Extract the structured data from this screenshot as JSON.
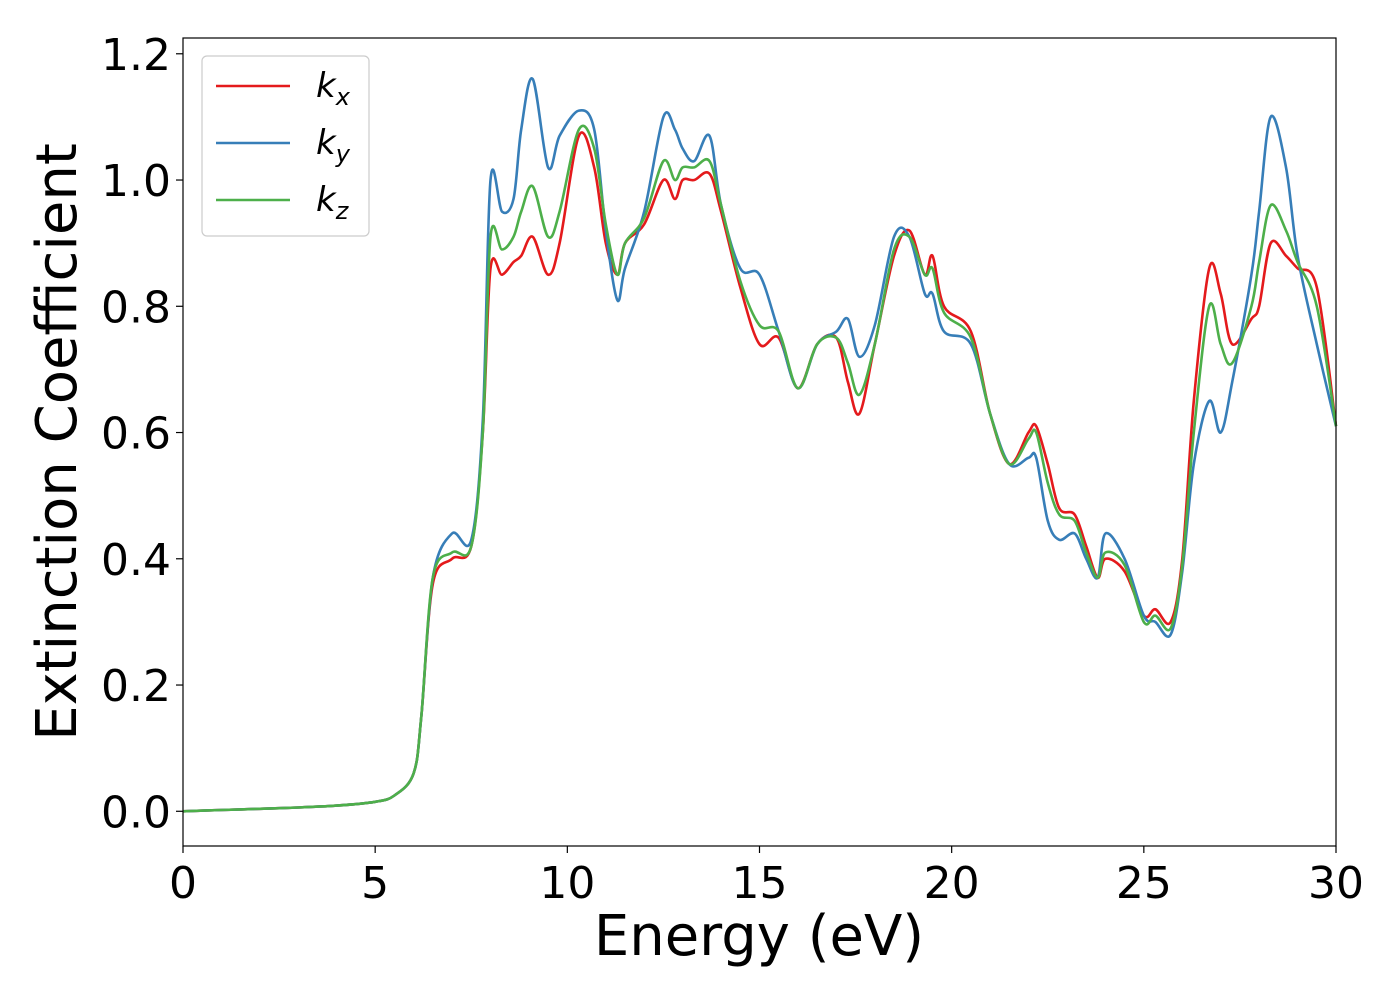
{
  "chart_data": {
    "type": "line",
    "xlabel": "Energy (eV)",
    "ylabel": "Extinction Coefficient",
    "xlim": [
      0,
      30
    ],
    "ylim": [
      -0.055,
      1.225
    ],
    "xticks": [
      0,
      5,
      10,
      15,
      20,
      25,
      30
    ],
    "yticks": [
      0.0,
      0.2,
      0.4,
      0.6,
      0.8,
      1.0,
      1.2
    ],
    "grid": false,
    "legend_position": "top-left",
    "series": [
      {
        "name": "k",
        "subscript": "x",
        "color": "#e41a1c",
        "x": [
          0,
          1,
          2,
          3,
          4,
          5,
          5.5,
          6,
          6.2,
          6.5,
          7,
          7.5,
          7.8,
          8,
          8.3,
          8.6,
          8.8,
          9.1,
          9.5,
          9.8,
          10.3,
          10.7,
          11,
          11.3,
          11.5,
          12,
          12.5,
          12.8,
          13,
          13.3,
          13.7,
          14,
          14.5,
          15,
          15.5,
          16,
          16.5,
          17,
          17.3,
          17.6,
          18,
          18.5,
          18.9,
          19.3,
          19.5,
          19.8,
          20.5,
          21,
          21.5,
          22,
          22.2,
          22.5,
          22.8,
          23.2,
          23.5,
          23.8,
          24,
          24.5,
          25,
          25.3,
          25.7,
          26,
          26.3,
          26.7,
          27,
          27.3,
          27.8,
          28,
          28.3,
          28.7,
          29,
          29.5,
          30
        ],
        "y": [
          0,
          0.002,
          0.004,
          0.006,
          0.009,
          0.015,
          0.025,
          0.06,
          0.15,
          0.36,
          0.4,
          0.42,
          0.6,
          0.86,
          0.85,
          0.87,
          0.88,
          0.91,
          0.85,
          0.9,
          1.07,
          1.02,
          0.9,
          0.85,
          0.9,
          0.93,
          1.0,
          0.97,
          1.0,
          1.0,
          1.01,
          0.95,
          0.83,
          0.74,
          0.75,
          0.67,
          0.74,
          0.75,
          0.68,
          0.63,
          0.74,
          0.88,
          0.92,
          0.85,
          0.88,
          0.8,
          0.76,
          0.63,
          0.55,
          0.6,
          0.61,
          0.55,
          0.48,
          0.47,
          0.42,
          0.37,
          0.4,
          0.38,
          0.31,
          0.32,
          0.3,
          0.4,
          0.65,
          0.86,
          0.82,
          0.74,
          0.78,
          0.8,
          0.9,
          0.88,
          0.86,
          0.83,
          0.61
        ]
      },
      {
        "name": "k",
        "subscript": "y",
        "color": "#377eb8",
        "x": [
          0,
          1,
          2,
          3,
          4,
          5,
          5.5,
          6,
          6.2,
          6.5,
          7,
          7.5,
          7.8,
          8,
          8.3,
          8.6,
          8.8,
          9.1,
          9.5,
          9.8,
          10.3,
          10.7,
          11,
          11.3,
          11.5,
          12,
          12.5,
          12.8,
          13,
          13.3,
          13.7,
          14,
          14.5,
          15,
          15.5,
          16,
          16.5,
          17,
          17.3,
          17.6,
          18,
          18.5,
          18.9,
          19.3,
          19.5,
          19.8,
          20.5,
          21,
          21.5,
          22,
          22.2,
          22.5,
          22.8,
          23.2,
          23.5,
          23.8,
          24,
          24.5,
          25,
          25.3,
          25.7,
          26,
          26.3,
          26.7,
          27,
          27.3,
          27.8,
          28,
          28.3,
          28.7,
          29,
          29.5,
          30
        ],
        "y": [
          0,
          0.002,
          0.004,
          0.006,
          0.009,
          0.015,
          0.025,
          0.06,
          0.15,
          0.37,
          0.44,
          0.43,
          0.62,
          1.0,
          0.95,
          0.97,
          1.08,
          1.16,
          1.02,
          1.07,
          1.11,
          1.08,
          0.92,
          0.81,
          0.86,
          0.95,
          1.1,
          1.08,
          1.05,
          1.03,
          1.07,
          0.96,
          0.86,
          0.85,
          0.76,
          0.67,
          0.74,
          0.76,
          0.78,
          0.72,
          0.77,
          0.91,
          0.91,
          0.82,
          0.82,
          0.76,
          0.74,
          0.63,
          0.55,
          0.56,
          0.56,
          0.46,
          0.43,
          0.44,
          0.4,
          0.37,
          0.44,
          0.4,
          0.31,
          0.3,
          0.28,
          0.38,
          0.55,
          0.65,
          0.6,
          0.68,
          0.85,
          0.95,
          1.1,
          1.02,
          0.88,
          0.74,
          0.61
        ]
      },
      {
        "name": "k",
        "subscript": "z",
        "color": "#4daf4a",
        "x": [
          0,
          1,
          2,
          3,
          4,
          5,
          5.5,
          6,
          6.2,
          6.5,
          7,
          7.5,
          7.8,
          8,
          8.3,
          8.6,
          8.8,
          9.1,
          9.5,
          9.8,
          10.3,
          10.7,
          11,
          11.3,
          11.5,
          12,
          12.5,
          12.8,
          13,
          13.3,
          13.7,
          14,
          14.5,
          15,
          15.5,
          16,
          16.5,
          17,
          17.3,
          17.6,
          18,
          18.5,
          18.9,
          19.3,
          19.5,
          19.8,
          20.5,
          21,
          21.5,
          22,
          22.2,
          22.5,
          22.8,
          23.2,
          23.5,
          23.8,
          24,
          24.5,
          25,
          25.3,
          25.7,
          26,
          26.3,
          26.7,
          27,
          27.3,
          27.8,
          28,
          28.3,
          28.7,
          29,
          29.5,
          30
        ],
        "y": [
          0,
          0.002,
          0.004,
          0.006,
          0.009,
          0.015,
          0.025,
          0.06,
          0.15,
          0.37,
          0.41,
          0.42,
          0.6,
          0.91,
          0.89,
          0.91,
          0.95,
          0.99,
          0.91,
          0.95,
          1.08,
          1.05,
          0.93,
          0.85,
          0.9,
          0.94,
          1.03,
          1.0,
          1.02,
          1.02,
          1.03,
          0.96,
          0.84,
          0.77,
          0.76,
          0.67,
          0.74,
          0.75,
          0.71,
          0.66,
          0.74,
          0.89,
          0.91,
          0.85,
          0.86,
          0.79,
          0.75,
          0.63,
          0.55,
          0.59,
          0.6,
          0.52,
          0.47,
          0.46,
          0.41,
          0.37,
          0.41,
          0.39,
          0.3,
          0.31,
          0.29,
          0.39,
          0.6,
          0.8,
          0.74,
          0.71,
          0.8,
          0.87,
          0.96,
          0.92,
          0.87,
          0.8,
          0.61
        ]
      }
    ]
  }
}
